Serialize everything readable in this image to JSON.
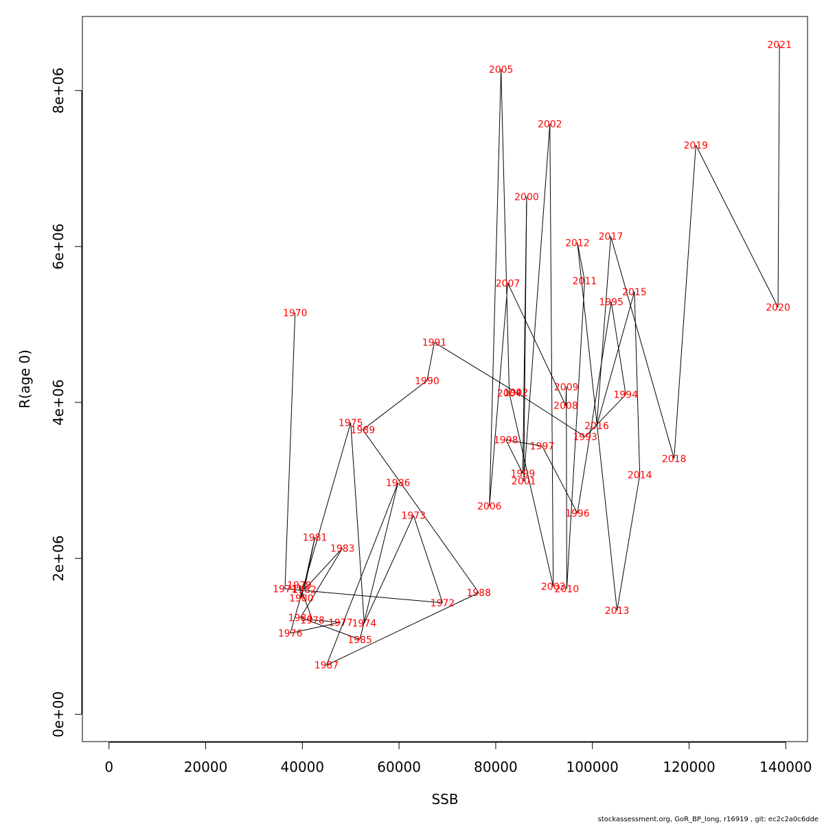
{
  "footer": "stockassessment.org, GoR_BP_long, r16919 , git: ec2c2a0c6dde",
  "chart_data": {
    "type": "line",
    "xlabel": "SSB",
    "ylabel": "R(age 0)",
    "xlim": [
      -5500,
      144500
    ],
    "ylim": [
      -350000,
      8950000
    ],
    "xticks": [
      0,
      20000,
      40000,
      60000,
      80000,
      100000,
      120000,
      140000
    ],
    "xtick_labels": [
      "0",
      "20000",
      "40000",
      "60000",
      "80000",
      "100000",
      "120000",
      "140000"
    ],
    "yticks": [
      0,
      2000000,
      4000000,
      6000000,
      8000000
    ],
    "ytick_labels": [
      "0e+00",
      "2e+06",
      "4e+06",
      "6e+06",
      "8e+06"
    ],
    "grid": false,
    "line_color": "#000000",
    "label_color": "#ff0000",
    "points": [
      {
        "year": "1970",
        "ssb": 38500,
        "r": 5150000
      },
      {
        "year": "1971",
        "ssb": 36400,
        "r": 1610000
      },
      {
        "year": "1972",
        "ssb": 69000,
        "r": 1430000
      },
      {
        "year": "1973",
        "ssb": 63000,
        "r": 2550000
      },
      {
        "year": "1974",
        "ssb": 52800,
        "r": 1170000
      },
      {
        "year": "1975",
        "ssb": 50000,
        "r": 3740000
      },
      {
        "year": "1976",
        "ssb": 37500,
        "r": 1040000
      },
      {
        "year": "1977",
        "ssb": 47900,
        "r": 1180000
      },
      {
        "year": "1978",
        "ssb": 42100,
        "r": 1210000
      },
      {
        "year": "1979",
        "ssb": 39400,
        "r": 1660000
      },
      {
        "year": "1980",
        "ssb": 39800,
        "r": 1490000
      },
      {
        "year": "1981",
        "ssb": 42600,
        "r": 2270000
      },
      {
        "year": "1982",
        "ssb": 40400,
        "r": 1600000
      },
      {
        "year": "1983",
        "ssb": 48300,
        "r": 2130000
      },
      {
        "year": "1984",
        "ssb": 39600,
        "r": 1240000
      },
      {
        "year": "1985",
        "ssb": 51900,
        "r": 960000
      },
      {
        "year": "1986",
        "ssb": 59800,
        "r": 2970000
      },
      {
        "year": "1987",
        "ssb": 45000,
        "r": 630000
      },
      {
        "year": "1988",
        "ssb": 76500,
        "r": 1560000
      },
      {
        "year": "1989",
        "ssb": 52500,
        "r": 3650000
      },
      {
        "year": "1990",
        "ssb": 65800,
        "r": 4280000
      },
      {
        "year": "1991",
        "ssb": 67300,
        "r": 4770000
      },
      {
        "year": "1992",
        "ssb": 84200,
        "r": 4130000
      },
      {
        "year": "1993",
        "ssb": 98500,
        "r": 3560000
      },
      {
        "year": "1994",
        "ssb": 106900,
        "r": 4100000
      },
      {
        "year": "1995",
        "ssb": 103900,
        "r": 5290000
      },
      {
        "year": "1996",
        "ssb": 96900,
        "r": 2580000
      },
      {
        "year": "1997",
        "ssb": 89600,
        "r": 3440000
      },
      {
        "year": "1998",
        "ssb": 82100,
        "r": 3520000
      },
      {
        "year": "1999",
        "ssb": 85600,
        "r": 3090000
      },
      {
        "year": "2000",
        "ssb": 86400,
        "r": 6640000
      },
      {
        "year": "2001",
        "ssb": 85800,
        "r": 2990000
      },
      {
        "year": "2002",
        "ssb": 91200,
        "r": 7570000
      },
      {
        "year": "2003",
        "ssb": 91900,
        "r": 1640000
      },
      {
        "year": "2004",
        "ssb": 82800,
        "r": 4120000
      },
      {
        "year": "2005",
        "ssb": 81100,
        "r": 8270000
      },
      {
        "year": "2006",
        "ssb": 78700,
        "r": 2670000
      },
      {
        "year": "2007",
        "ssb": 82500,
        "r": 5530000
      },
      {
        "year": "2008",
        "ssb": 94500,
        "r": 3960000
      },
      {
        "year": "2009",
        "ssb": 94600,
        "r": 4200000
      },
      {
        "year": "2010",
        "ssb": 94700,
        "r": 1610000
      },
      {
        "year": "2011",
        "ssb": 98400,
        "r": 5560000
      },
      {
        "year": "2012",
        "ssb": 96900,
        "r": 6050000
      },
      {
        "year": "2013",
        "ssb": 105100,
        "r": 1330000
      },
      {
        "year": "2014",
        "ssb": 109800,
        "r": 3070000
      },
      {
        "year": "2015",
        "ssb": 108700,
        "r": 5420000
      },
      {
        "year": "2016",
        "ssb": 100900,
        "r": 3700000
      },
      {
        "year": "2017",
        "ssb": 103800,
        "r": 6130000
      },
      {
        "year": "2018",
        "ssb": 116900,
        "r": 3280000
      },
      {
        "year": "2019",
        "ssb": 121400,
        "r": 7300000
      },
      {
        "year": "2020",
        "ssb": 138400,
        "r": 5220000
      },
      {
        "year": "2021",
        "ssb": 138700,
        "r": 8590000
      }
    ]
  }
}
